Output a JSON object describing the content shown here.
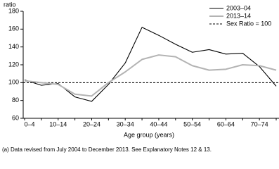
{
  "chart_data": {
    "type": "line",
    "y_label": "ratio",
    "x_label": "Age group (years)",
    "footnote": "(a) Data revised from July 2004 to December 2013. See Explanatory Notes 12 & 13.",
    "categories": [
      "0–4",
      null,
      "10–14",
      null,
      "20–24",
      null,
      "30–34",
      null,
      "40–44",
      null,
      "50–54",
      null,
      "60–64",
      null,
      "70–74",
      null
    ],
    "series": [
      {
        "name": "2003–04",
        "color": "#000000",
        "values": [
          103,
          97,
          99,
          84,
          79,
          98,
          122,
          162,
          153,
          143,
          134,
          137,
          132,
          133,
          118,
          96
        ]
      },
      {
        "name": "2013–14",
        "color": "#b3b3b3",
        "values": [
          102,
          100,
          98,
          87,
          85,
          100,
          112,
          126,
          131,
          129,
          119,
          114,
          115,
          120,
          119,
          114
        ]
      }
    ],
    "reference_line": {
      "name": "Sex Ratio = 100",
      "value": 100,
      "color": "#000000"
    },
    "ylim": [
      60,
      180
    ],
    "yticks": [
      60,
      80,
      100,
      120,
      140,
      160,
      180
    ],
    "legend": "top-right"
  }
}
